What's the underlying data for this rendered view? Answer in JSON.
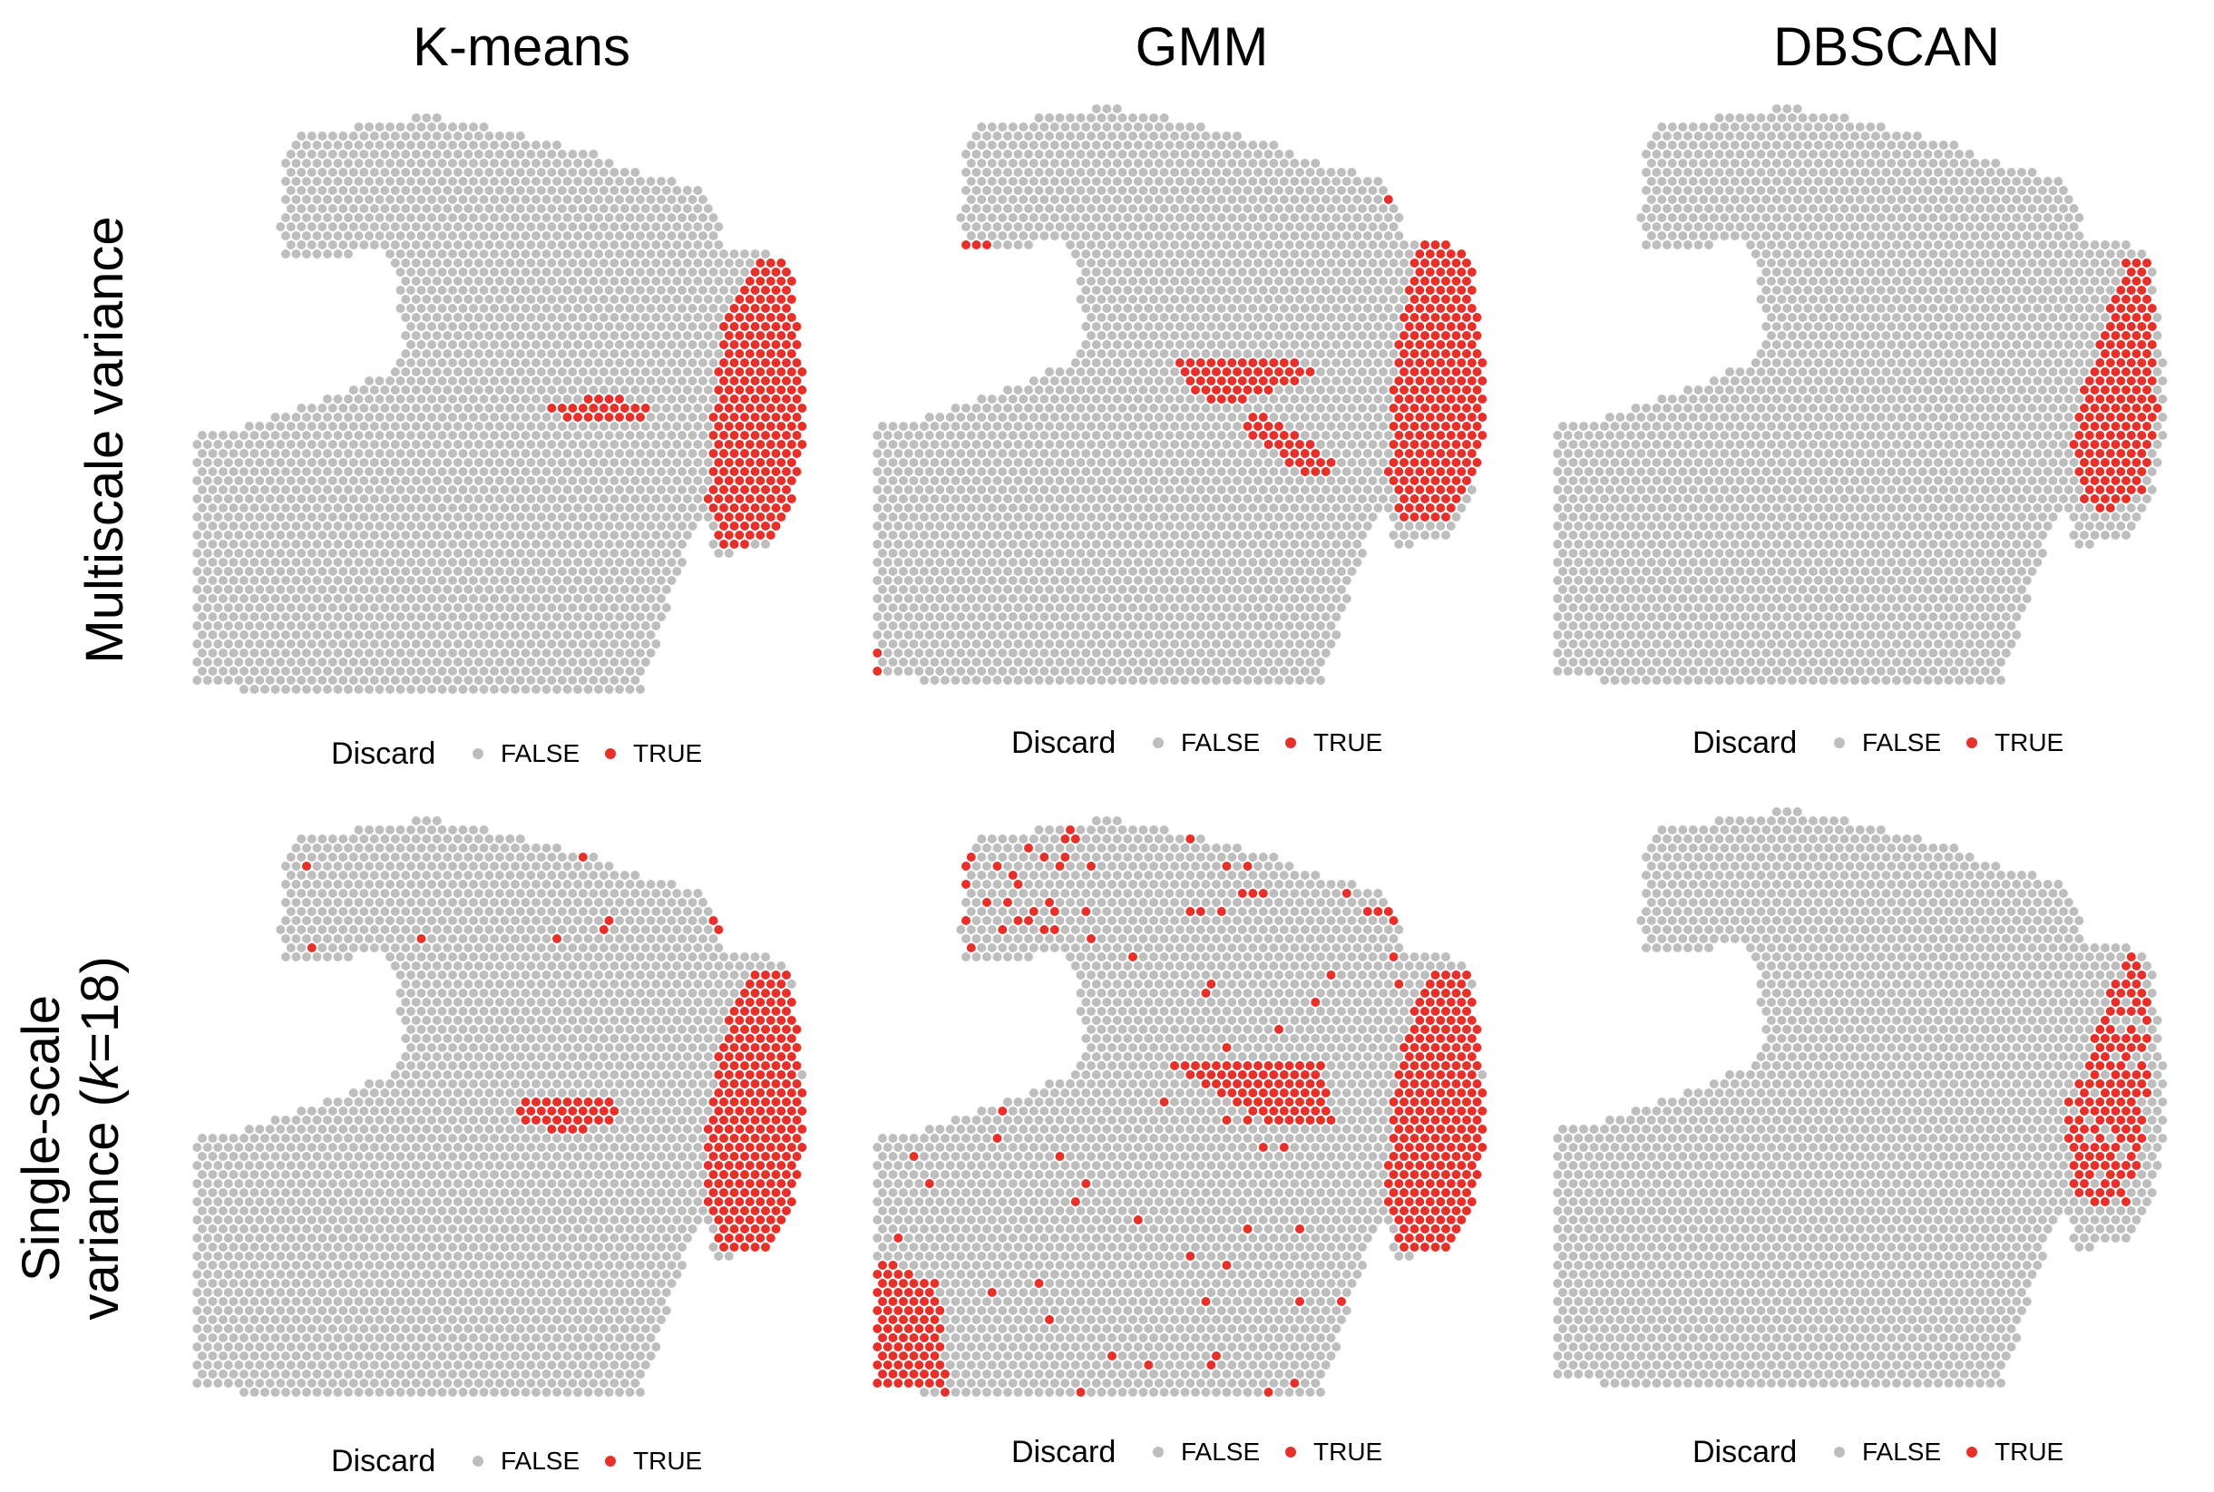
{
  "columns": [
    "K-means",
    "GMM",
    "DBSCAN"
  ],
  "rows": {
    "row1": [
      "Multiscale variance"
    ],
    "row2": [
      "Single-scale",
      "variance (",
      "k",
      "=18)"
    ]
  },
  "legend": {
    "title": "Discard",
    "items": [
      "FALSE",
      "TRUE"
    ]
  },
  "colors": {
    "false": "#bebebe",
    "true": "#e8302a"
  },
  "chart_data": [
    {
      "type": "scatter",
      "panel": "K-means / Multiscale variance",
      "legend": [
        "FALSE",
        "TRUE"
      ],
      "true_regions": [
        "dense band along right edge of tissue",
        "small horizontal cluster in center"
      ]
    },
    {
      "type": "scatter",
      "panel": "GMM / Multiscale variance",
      "legend": [
        "FALSE",
        "TRUE"
      ],
      "true_regions": [
        "dense band along right edge of tissue",
        "triangular cluster in center",
        "diagonal streak below center",
        "small spots at top-right and left edge"
      ]
    },
    {
      "type": "scatter",
      "panel": "DBSCAN / Multiscale variance",
      "legend": [
        "FALSE",
        "TRUE"
      ],
      "true_regions": [
        "narrow band along right edge of tissue"
      ]
    },
    {
      "type": "scatter",
      "panel": "K-means / Single-scale variance (k=18)",
      "legend": [
        "FALSE",
        "TRUE"
      ],
      "true_regions": [
        "dense band along right edge of tissue",
        "cluster in center",
        "scattered spots near top"
      ]
    },
    {
      "type": "scatter",
      "panel": "GMM / Single-scale variance (k=18)",
      "legend": [
        "FALSE",
        "TRUE"
      ],
      "true_regions": [
        "dense band along right edge of tissue",
        "boundary spots around top",
        "horizontal cluster in center",
        "lower-left corner region",
        "scattered spots"
      ]
    },
    {
      "type": "scatter",
      "panel": "DBSCAN / Single-scale variance (k=18)",
      "legend": [
        "FALSE",
        "TRUE"
      ],
      "true_regions": [
        "ragged band along right edge of tissue"
      ]
    }
  ]
}
